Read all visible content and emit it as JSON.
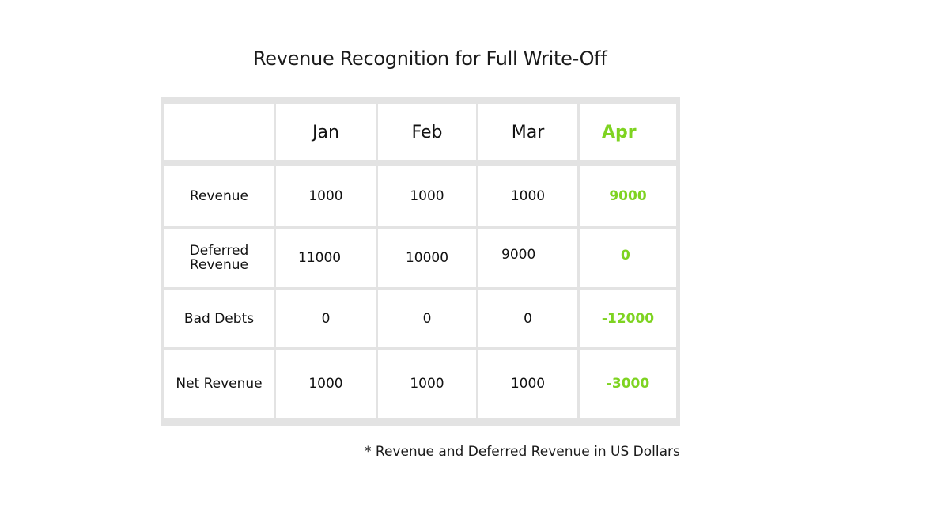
{
  "title": "Revenue Recognition for Full Write-Off",
  "accent_color": "#7ed321",
  "table": {
    "columns": [
      "Jan",
      "Feb",
      "Mar",
      "Apr"
    ],
    "rows": [
      {
        "label": "Revenue",
        "values": [
          "1000",
          "1000",
          "1000",
          "9000"
        ]
      },
      {
        "label": "Deferred\nRevenue",
        "values": [
          "11000",
          "10000",
          "9000",
          "0"
        ]
      },
      {
        "label": "Bad Debts",
        "values": [
          "0",
          "0",
          "0",
          "-12000"
        ]
      },
      {
        "label": "Net Revenue",
        "values": [
          "1000",
          "1000",
          "1000",
          "-3000"
        ]
      }
    ]
  },
  "footnote": "* Revenue and Deferred Revenue in US Dollars"
}
